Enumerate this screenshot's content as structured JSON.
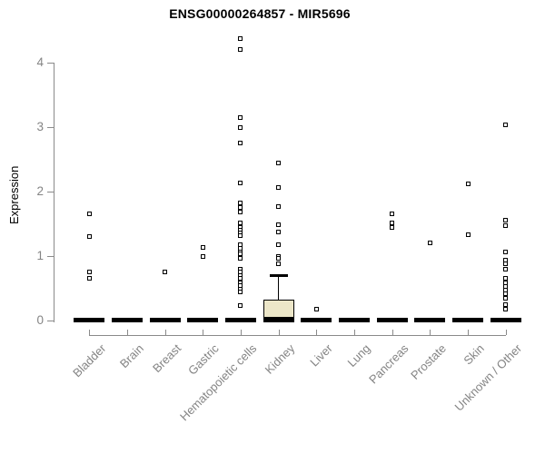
{
  "title": "ENSG00000264857 - MIR5696",
  "colors": {
    "title": "#000000",
    "axis_line": "#8a8a8a",
    "axis_text": "#848484",
    "point": "#000000",
    "box_fill": "#ece6c8",
    "bar": "#000000"
  },
  "chart_data": {
    "type": "boxplot",
    "title": "ENSG00000264857 - MIR5696",
    "xlabel": "",
    "ylabel": "Expression",
    "ylim": [
      0,
      4.4
    ],
    "yticks": [
      0,
      1,
      2,
      3,
      4
    ],
    "grid": false,
    "legend": false,
    "categories": [
      "Bladder",
      "Brain",
      "Breast",
      "Gastric",
      "Hematopoietic cells",
      "Kidney",
      "Liver",
      "Lung",
      "Pancreas",
      "Prostate",
      "Skin",
      "Unknown / Other"
    ],
    "groups": [
      {
        "category": "Bladder",
        "median": 0,
        "outliers": [
          1.65,
          1.3,
          0.76,
          0.66
        ]
      },
      {
        "category": "Brain",
        "median": 0,
        "outliers": []
      },
      {
        "category": "Breast",
        "median": 0,
        "outliers": [
          0.76
        ]
      },
      {
        "category": "Gastric",
        "median": 0,
        "outliers": [
          1.13,
          1.0
        ]
      },
      {
        "category": "Hematopoietic cells",
        "median": 0,
        "outliers": [
          4.37,
          4.2,
          3.15,
          3.0,
          2.75,
          2.13,
          1.82,
          1.75,
          1.69,
          1.51,
          1.45,
          1.4,
          1.36,
          1.31,
          1.17,
          1.12,
          1.07,
          1.03,
          0.97,
          0.79,
          0.75,
          0.7,
          0.65,
          0.58,
          0.54,
          0.49,
          0.44,
          0.23
        ]
      },
      {
        "category": "Kidney",
        "median": 0,
        "q1": 0,
        "q3": 0.33,
        "whisker_high": 0.7,
        "outliers": [
          2.44,
          2.06,
          1.77,
          1.49,
          1.38,
          1.18,
          1.0,
          0.97,
          0.88
        ]
      },
      {
        "category": "Liver",
        "median": 0,
        "outliers": [
          0.17
        ]
      },
      {
        "category": "Lung",
        "median": 0,
        "outliers": []
      },
      {
        "category": "Pancreas",
        "median": 0,
        "outliers": [
          1.66,
          1.51,
          1.45
        ]
      },
      {
        "category": "Prostate",
        "median": 0,
        "outliers": [
          1.21
        ]
      },
      {
        "category": "Skin",
        "median": 0,
        "outliers": [
          2.12,
          1.33
        ]
      },
      {
        "category": "Unknown / Other",
        "median": 0,
        "outliers": [
          3.03,
          1.55,
          1.47,
          1.07,
          0.93,
          0.88,
          0.8,
          0.65,
          0.59,
          0.53,
          0.47,
          0.41,
          0.35,
          0.25,
          0.17
        ]
      }
    ]
  }
}
